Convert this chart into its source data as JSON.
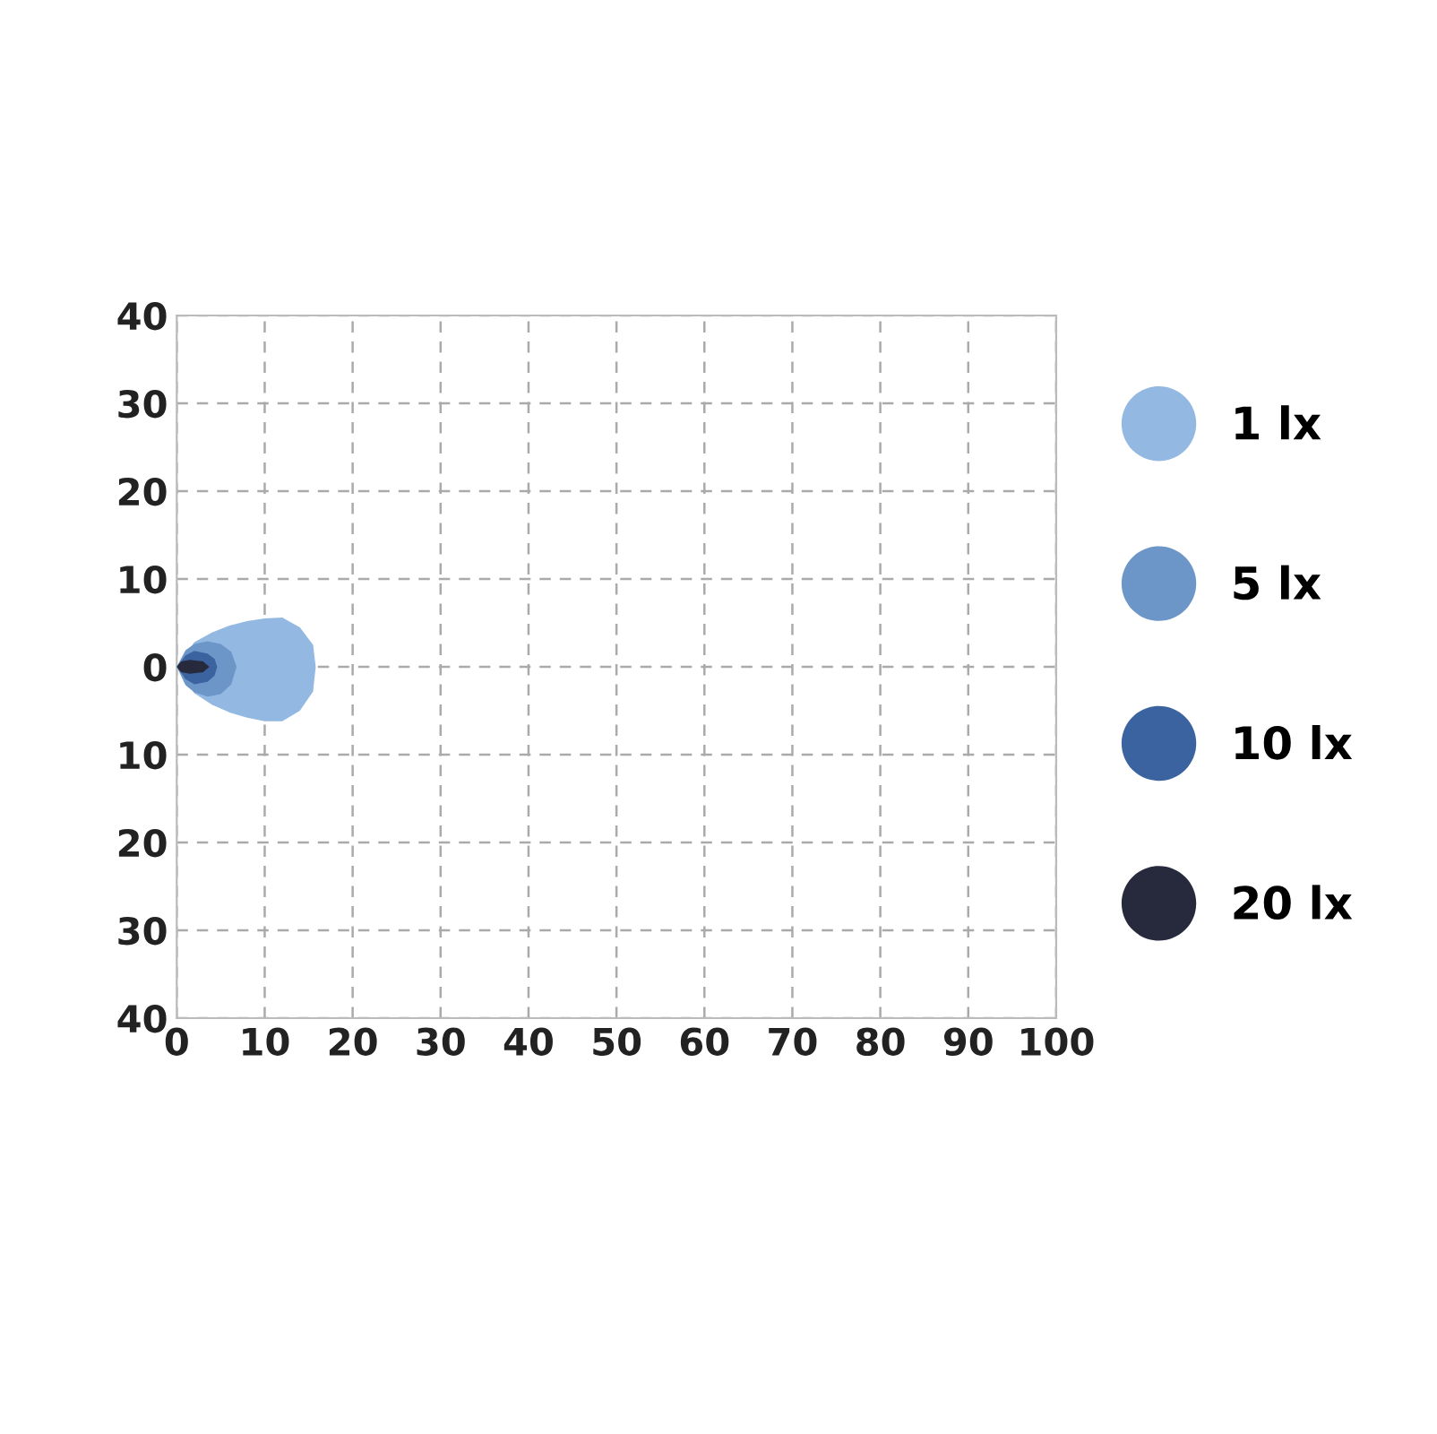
{
  "chart_data": {
    "type": "area",
    "xlim": [
      0,
      100
    ],
    "xticks": [
      0,
      10,
      20,
      30,
      40,
      50,
      60,
      70,
      80,
      90,
      100
    ],
    "ylim": [
      -40,
      40
    ],
    "yticks": [
      {
        "value": -40,
        "label": "40"
      },
      {
        "value": -30,
        "label": "30"
      },
      {
        "value": -20,
        "label": "20"
      },
      {
        "value": -10,
        "label": "10"
      },
      0,
      10,
      20,
      30,
      40
    ],
    "grid": true,
    "legend": "right",
    "series": [
      {
        "name": "1 lx",
        "color": "#93b8e2",
        "x": [
          0,
          2,
          4,
          6,
          8,
          10,
          12,
          14,
          15.5,
          15.8,
          15.5,
          14,
          12,
          10,
          8,
          6,
          4,
          2
        ],
        "values": [
          0,
          2.8,
          3.9,
          4.7,
          5.2,
          5.5,
          5.6,
          4.5,
          2.5,
          0,
          -2.8,
          -5.0,
          -6.2,
          -6.2,
          -5.8,
          -5.2,
          -4.3,
          -3.0
        ]
      },
      {
        "name": "5 lx",
        "color": "#6d96c8",
        "x": [
          0,
          1,
          2,
          3.5,
          5,
          6.2,
          6.8,
          6.2,
          5,
          3.5,
          2,
          1
        ],
        "values": [
          0,
          1.9,
          2.6,
          2.9,
          2.6,
          1.7,
          0,
          -2.0,
          -3.1,
          -3.4,
          -2.9,
          -2.1
        ]
      },
      {
        "name": "10 lx",
        "color": "#3b63a0",
        "x": [
          0,
          1,
          2,
          3.5,
          4.3,
          4.6,
          4.3,
          3.5,
          2,
          1
        ],
        "values": [
          0,
          1.3,
          1.8,
          1.5,
          0.9,
          0,
          -1.0,
          -1.7,
          -2.0,
          -1.4
        ]
      },
      {
        "name": "20 lx",
        "color": "#272a3d",
        "x": [
          0,
          0.5,
          1.5,
          3,
          3.7,
          3,
          1.5,
          0.5
        ],
        "values": [
          0,
          0.6,
          0.8,
          0.6,
          0,
          -0.6,
          -0.8,
          -0.6
        ]
      }
    ]
  }
}
